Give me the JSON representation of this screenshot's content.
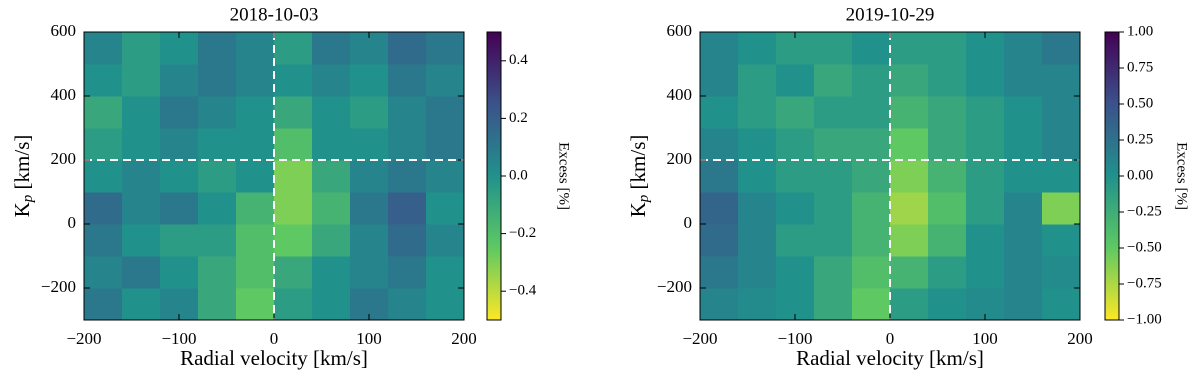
{
  "chart_data": [
    {
      "type": "heatmap",
      "title": "2018-10-03",
      "xlabel": "Radial velocity [km/s]",
      "ylabel": {
        "main": "K",
        "sub": "p",
        "unit": " [km/s]"
      },
      "xbins": [
        -200,
        -160,
        -120,
        -80,
        -40,
        0,
        40,
        80,
        120,
        160,
        200
      ],
      "ybins": [
        -300,
        -200,
        -100,
        0,
        100,
        200,
        300,
        400,
        500,
        600
      ],
      "z": [
        [
          0.1,
          0.0,
          0.05,
          -0.1,
          -0.25,
          -0.05,
          0.0,
          0.1,
          0.05,
          0.0
        ],
        [
          0.05,
          0.1,
          0.0,
          -0.1,
          -0.2,
          -0.1,
          0.0,
          0.05,
          0.1,
          0.0
        ],
        [
          0.1,
          0.0,
          -0.05,
          -0.05,
          -0.2,
          -0.25,
          -0.1,
          0.05,
          0.15,
          0.05
        ],
        [
          0.15,
          0.05,
          0.1,
          0.0,
          -0.15,
          -0.3,
          -0.15,
          0.1,
          0.2,
          0.0
        ],
        [
          0.0,
          0.05,
          0.0,
          -0.05,
          0.0,
          -0.3,
          -0.1,
          0.05,
          0.1,
          0.05
        ],
        [
          -0.05,
          0.0,
          0.05,
          0.0,
          0.0,
          -0.2,
          0.0,
          0.0,
          0.05,
          0.1
        ],
        [
          -0.1,
          0.0,
          0.1,
          0.05,
          0.0,
          -0.1,
          0.0,
          -0.05,
          0.05,
          0.1
        ],
        [
          0.0,
          -0.05,
          0.05,
          0.1,
          0.05,
          0.0,
          0.05,
          0.0,
          0.1,
          0.05
        ],
        [
          0.05,
          -0.05,
          0.0,
          0.1,
          0.05,
          -0.05,
          0.1,
          0.05,
          0.15,
          0.1
        ]
      ],
      "xlim": [
        -200,
        200
      ],
      "ylim": [
        -300,
        600
      ],
      "xticks": [
        {
          "value": -200,
          "label": "−200"
        },
        {
          "value": -100,
          "label": "−100"
        },
        0,
        100,
        200
      ],
      "yticks": [
        {
          "value": -200,
          "label": "−200"
        },
        0,
        200,
        400,
        600
      ],
      "colormap": "viridis_r",
      "clim": [
        -0.5,
        0.5
      ],
      "cticks": [
        0.4,
        0.2,
        {
          "value": 0,
          "label": "0.0"
        },
        {
          "value": -0.2,
          "label": "−0.2"
        },
        {
          "value": -0.4,
          "label": "−0.4"
        }
      ],
      "clabel": "Excess [%]",
      "crosshair": {
        "x": 0,
        "y": 200
      }
    },
    {
      "type": "heatmap",
      "title": "2019-10-29",
      "xlabel": "Radial velocity [km/s]",
      "ylabel": {
        "main": "K",
        "sub": "p",
        "unit": " [km/s]"
      },
      "xbins": [
        -200,
        -160,
        -120,
        -80,
        -40,
        0,
        40,
        80,
        120,
        160,
        200
      ],
      "ybins": [
        -300,
        -200,
        -100,
        0,
        100,
        200,
        300,
        400,
        500,
        600
      ],
      "z": [
        [
          0.1,
          0.05,
          0.0,
          -0.2,
          -0.5,
          -0.1,
          0.0,
          0.05,
          0.1,
          0.0
        ],
        [
          0.2,
          0.1,
          0.0,
          -0.2,
          -0.4,
          -0.3,
          -0.1,
          0.0,
          0.1,
          0.05
        ],
        [
          0.3,
          0.1,
          -0.1,
          -0.1,
          -0.3,
          -0.6,
          -0.3,
          0.0,
          0.1,
          0.0
        ],
        [
          0.35,
          0.1,
          0.0,
          -0.1,
          -0.3,
          -0.7,
          -0.4,
          -0.1,
          0.1,
          -0.6
        ],
        [
          0.2,
          0.0,
          -0.1,
          -0.1,
          -0.2,
          -0.6,
          -0.3,
          -0.1,
          0.0,
          0.0
        ],
        [
          0.1,
          0.0,
          -0.1,
          -0.2,
          -0.2,
          -0.5,
          -0.2,
          -0.1,
          0.0,
          0.1
        ],
        [
          0.0,
          -0.1,
          -0.2,
          -0.1,
          -0.1,
          -0.3,
          -0.2,
          -0.1,
          0.0,
          0.1
        ],
        [
          0.1,
          -0.1,
          0.0,
          -0.2,
          -0.1,
          -0.2,
          -0.1,
          0.0,
          0.1,
          0.1
        ],
        [
          0.1,
          0.0,
          -0.1,
          -0.1,
          0.0,
          -0.1,
          -0.1,
          0.0,
          0.1,
          0.2
        ]
      ],
      "xlim": [
        -200,
        200
      ],
      "ylim": [
        -300,
        600
      ],
      "xticks": [
        {
          "value": -200,
          "label": "−200"
        },
        {
          "value": -100,
          "label": "−100"
        },
        0,
        100,
        200
      ],
      "yticks": [
        {
          "value": -200,
          "label": "−200"
        },
        0,
        200,
        400,
        600
      ],
      "colormap": "viridis_r",
      "clim": [
        -1,
        1
      ],
      "cticks": [
        {
          "value": 1,
          "label": "1.00"
        },
        0.75,
        {
          "value": 0.5,
          "label": "0.50"
        },
        0.25,
        {
          "value": 0,
          "label": "0.00"
        },
        {
          "value": -0.25,
          "label": "−0.25"
        },
        {
          "value": -0.5,
          "label": "−0.50"
        },
        {
          "value": -0.75,
          "label": "−0.75"
        },
        {
          "value": -1,
          "label": "−1.00"
        }
      ],
      "clabel": "Excess [%]",
      "crosshair": {
        "x": 0,
        "y": 200
      }
    }
  ]
}
